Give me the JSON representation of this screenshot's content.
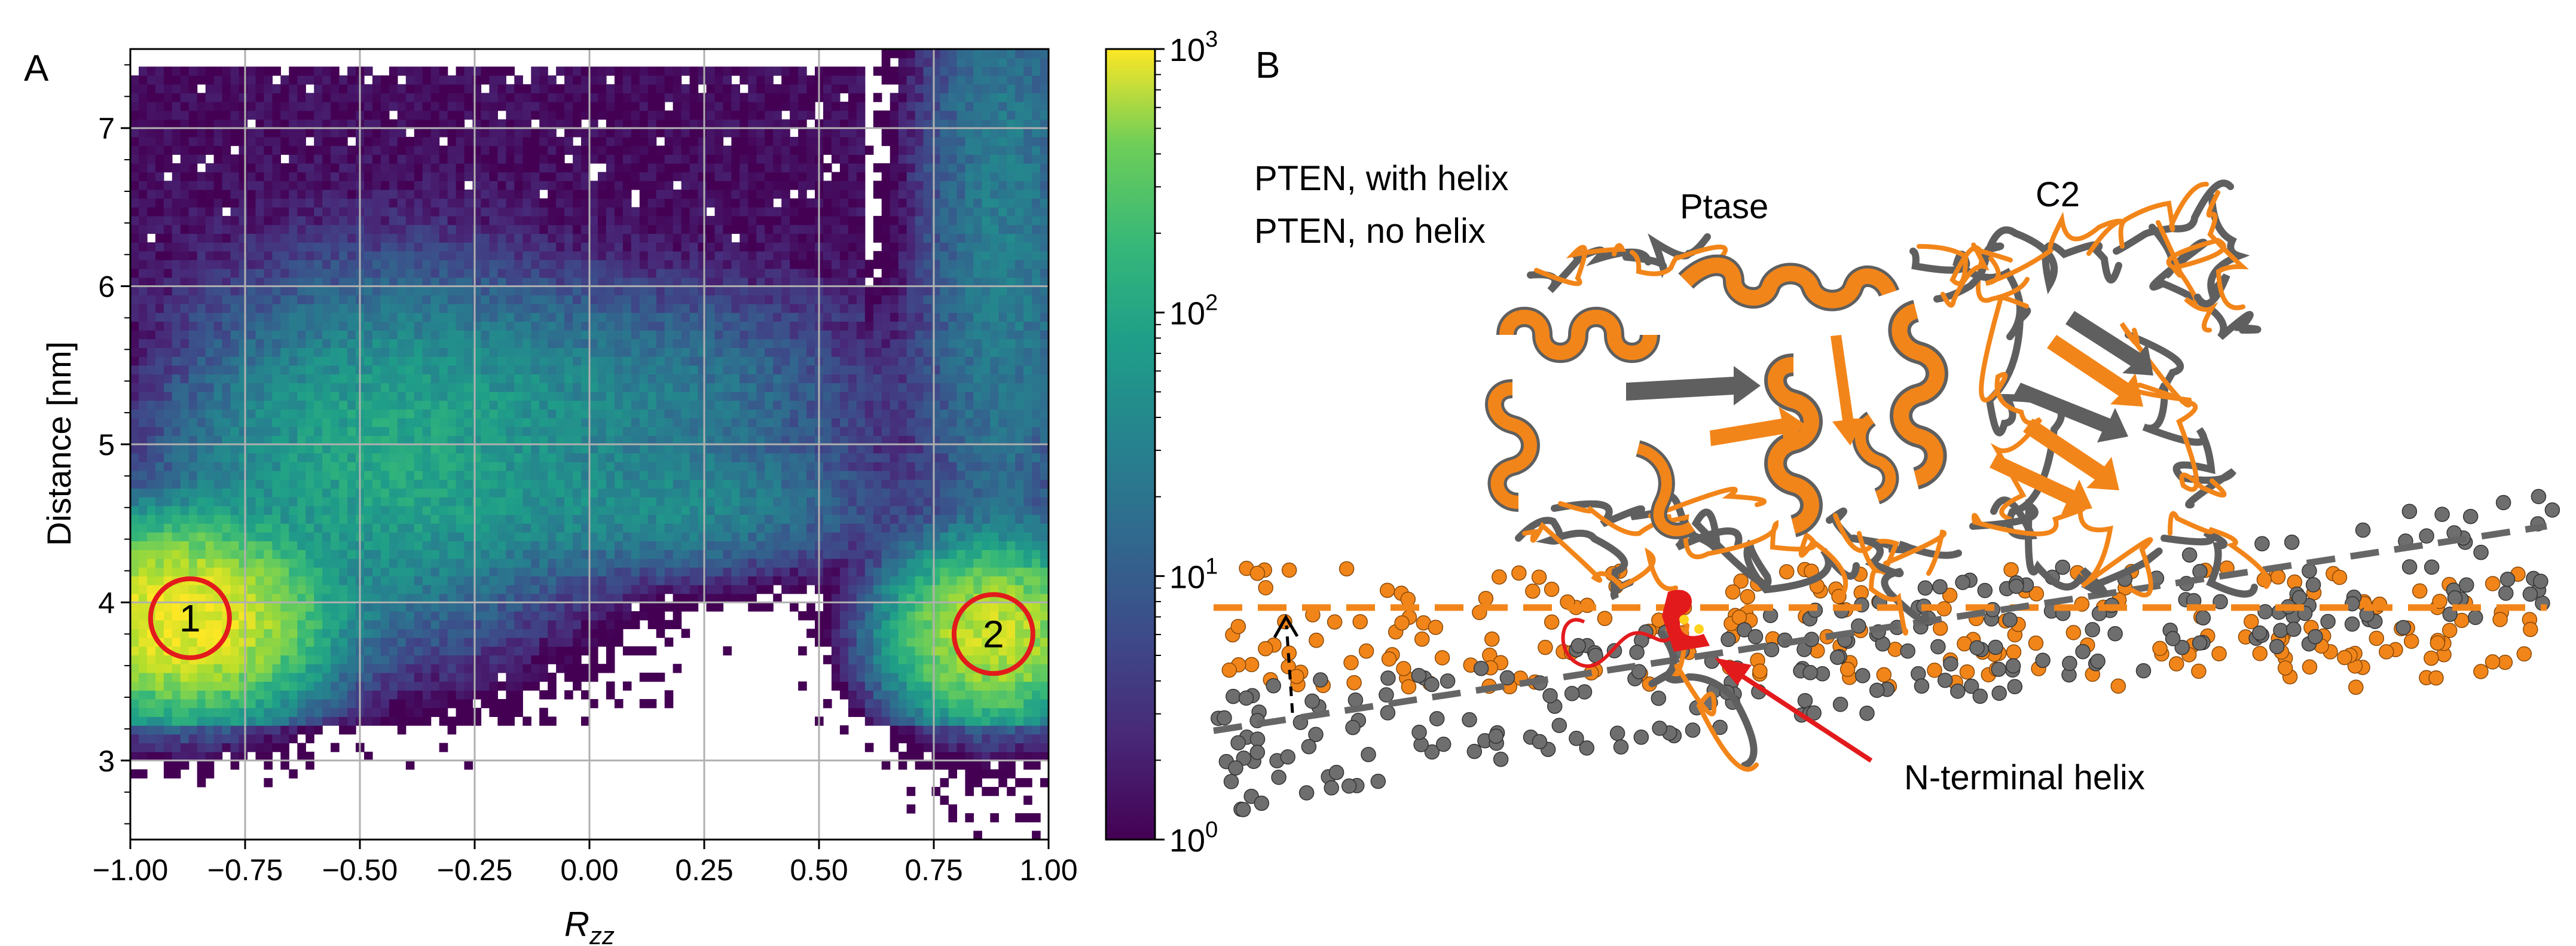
{
  "panel_a": {
    "label": "A",
    "xlabel": "R",
    "xlabel_sub": "zz",
    "ylabel": "Distance [nm]"
  },
  "colorbar": {
    "ticks": [
      {
        "base": "10",
        "exp": "3",
        "value": 1000
      },
      {
        "base": "10",
        "exp": "2",
        "value": 100
      },
      {
        "base": "10",
        "exp": "1",
        "value": 10
      },
      {
        "base": "10",
        "exp": "0",
        "value": 1
      }
    ]
  },
  "panel_b": {
    "label": "B",
    "legend_with_helix": "PTEN, with helix",
    "legend_no_helix": "PTEN, no helix",
    "label_ptase": "Ptase",
    "label_c2": "C2",
    "annotation_helix": "N-terminal helix"
  },
  "colors": {
    "orange": "#F28519",
    "gray": "#6E6E6E",
    "red": "#E31A1C"
  },
  "chart_data": {
    "type": "heatmap",
    "title": "",
    "xlabel": "R_zz",
    "ylabel": "Distance [nm]",
    "xlim": [
      -1.0,
      1.0
    ],
    "ylim": [
      2.5,
      7.5
    ],
    "grid": true,
    "x_ticks": [
      "−1.00",
      "−0.75",
      "−0.50",
      "−0.25",
      "0.00",
      "0.25",
      "0.50",
      "0.75",
      "1.00"
    ],
    "x_tick_values": [
      -1.0,
      -0.75,
      -0.5,
      -0.25,
      0.0,
      0.25,
      0.5,
      0.75,
      1.0
    ],
    "y_ticks": [
      "3",
      "4",
      "5",
      "6",
      "7"
    ],
    "y_tick_values": [
      3,
      4,
      5,
      6,
      7
    ],
    "colorbar": {
      "scale": "log",
      "range": [
        1,
        1000
      ],
      "colormap": "viridis"
    },
    "density_clusters": [
      {
        "x": -0.88,
        "y": 3.9,
        "peak_count": 1000
      },
      {
        "x": 0.88,
        "y": 3.8,
        "peak_count": 600
      },
      {
        "x": -0.45,
        "y": 4.9,
        "peak_count": 60
      },
      {
        "x": 0.05,
        "y": 5.3,
        "peak_count": 20
      },
      {
        "x": 0.15,
        "y": 4.6,
        "peak_count": 25
      },
      {
        "x": 0.9,
        "y": 6.3,
        "peak_count": 20
      }
    ],
    "annotations": [
      {
        "text": "1",
        "x": -0.87,
        "y": 3.9
      },
      {
        "text": "2",
        "x": 0.88,
        "y": 3.8
      }
    ]
  }
}
